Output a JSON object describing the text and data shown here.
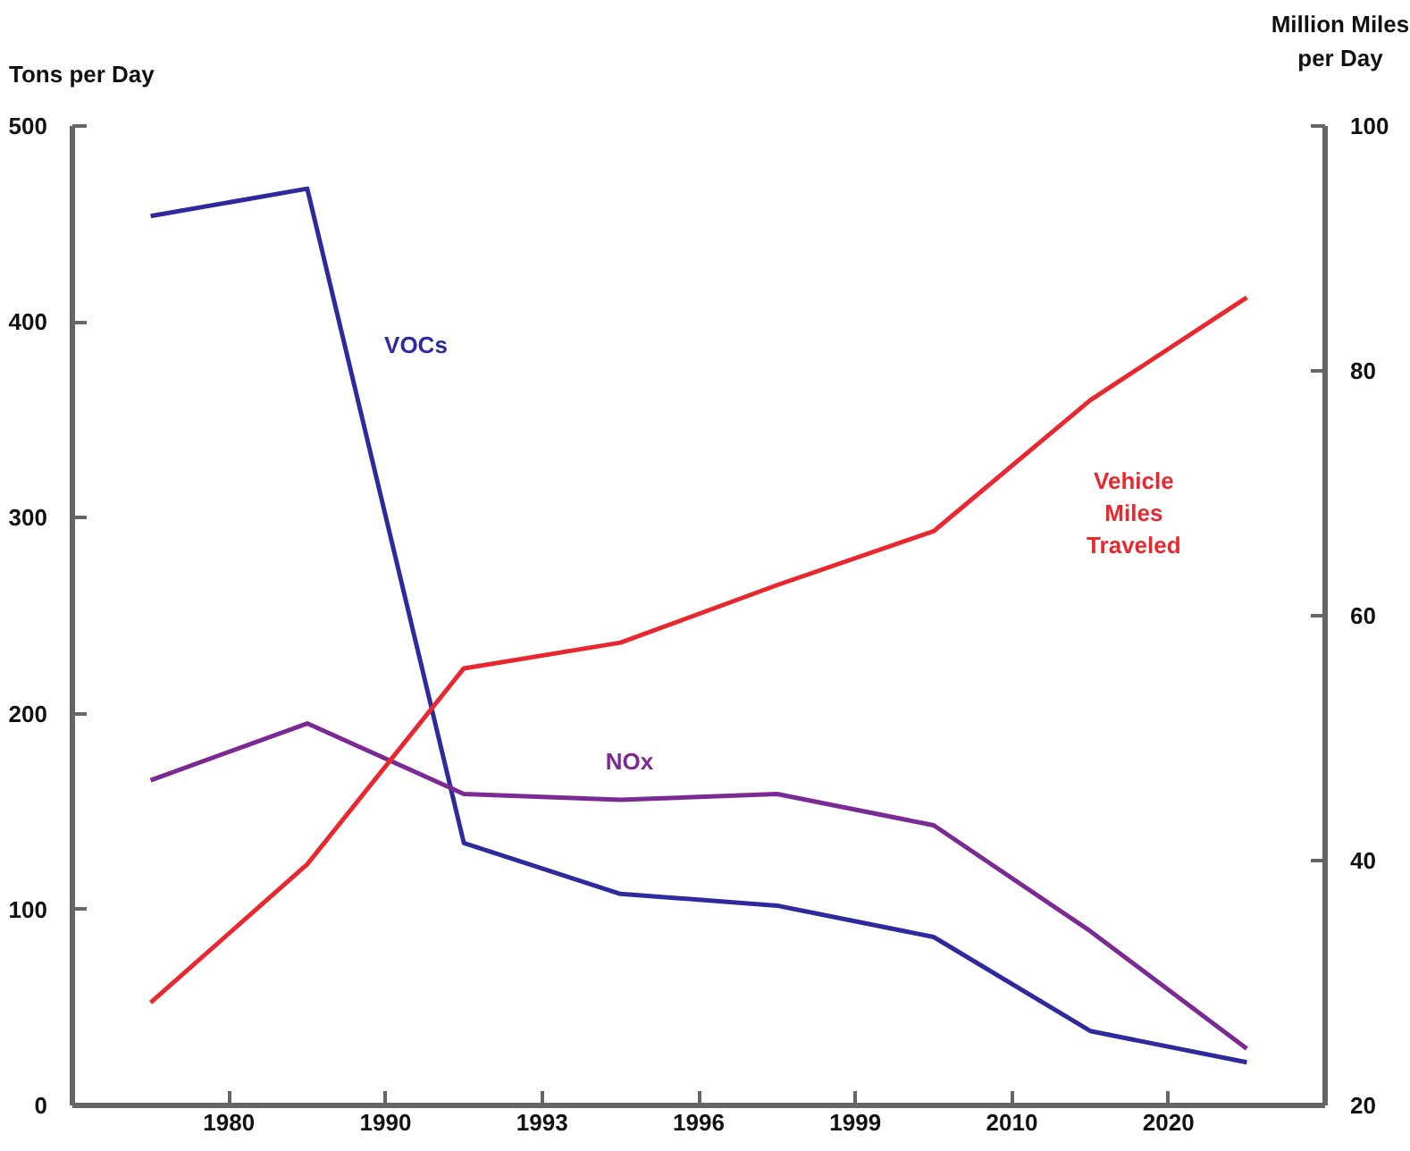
{
  "chart_data": {
    "type": "line",
    "ylabel": "Tons per Day",
    "y2label": "Million Miles per Day",
    "categories": [
      null,
      null,
      null,
      null,
      null,
      null,
      null,
      null
    ],
    "annotations": [
      "1980",
      "1990",
      "1993",
      "1996",
      "1999",
      "2010",
      "2020"
    ],
    "ylim": [
      0,
      500
    ],
    "yticks": [
      0,
      100,
      200,
      300,
      400,
      500
    ],
    "y2lim": [
      20,
      100
    ],
    "y2ticks": [
      20,
      40,
      60,
      80,
      100
    ],
    "series": [
      {
        "name": "VOCs",
        "color": "#2e2a9e",
        "values": [
          454,
          468,
          134,
          108,
          102,
          86,
          38,
          22
        ]
      },
      {
        "name": "NOx",
        "color": "#7b2a94",
        "values": [
          166,
          195,
          159,
          156,
          159,
          143,
          89,
          29
        ]
      },
      {
        "name": "Vehicle Miles Traveled",
        "color": "#e8282e",
        "axis": "y2",
        "values": [
          28.4,
          39.7,
          55.7,
          57.8,
          62.5,
          66.9,
          77.6,
          86.0
        ]
      }
    ],
    "grid": false
  }
}
